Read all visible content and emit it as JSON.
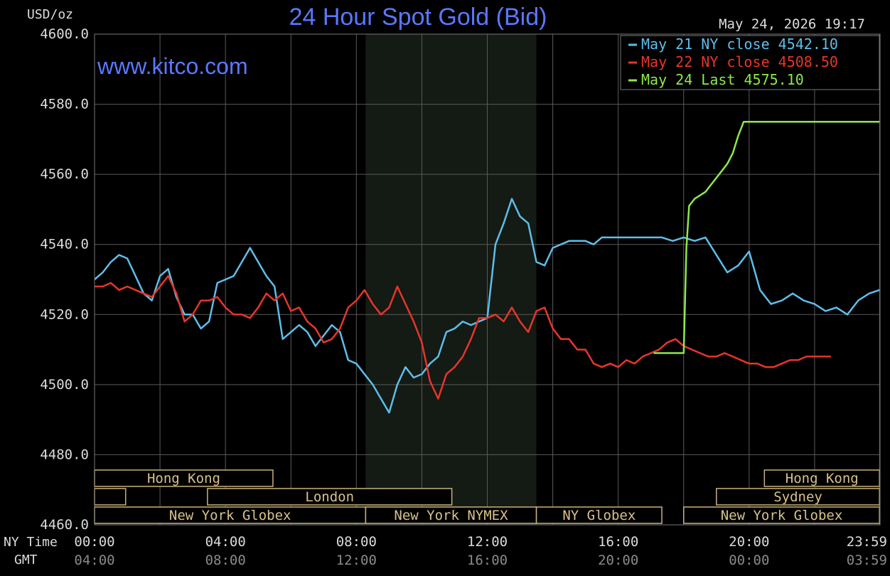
{
  "chart_data": {
    "type": "line",
    "title": "24 Hour Spot Gold (Bid)",
    "watermark": "www.kitco.com",
    "ylabel": "USD/oz",
    "timestamp": "May 24, 2026 19:17",
    "ylim": [
      4460,
      4600
    ],
    "xlim": [
      0,
      1440
    ],
    "yticks": [
      "4600.0",
      "4580.0",
      "4560.0",
      "4540.0",
      "4520.0",
      "4500.0",
      "4480.0",
      "4460.0"
    ],
    "x_row_labels": {
      "ny": "NY Time",
      "gmt": "GMT"
    },
    "x_ticks_ny": [
      "00:00",
      "04:00",
      "08:00",
      "12:00",
      "16:00",
      "20:00",
      "23:59"
    ],
    "x_ticks_gmt": [
      "04:00",
      "08:00",
      "12:00",
      "16:00",
      "20:00",
      "00:00",
      "03:59"
    ],
    "x_tick_positions_min": [
      0,
      240,
      480,
      720,
      960,
      1200,
      1439
    ],
    "legend": {
      "placement": "top-right",
      "entries": [
        {
          "label": "May 21 NY close 4542.10",
          "color": "#5ebeea"
        },
        {
          "label": "May 22 NY close 4508.50",
          "color": "#e8352a"
        },
        {
          "label": "May 24 Last 4575.10",
          "color": "#8fe848"
        }
      ]
    },
    "shaded_region_min": [
      497,
      810
    ],
    "sessions": [
      {
        "label": "Hong Kong",
        "row": 1,
        "start": 0,
        "end": 327
      },
      {
        "label": "",
        "row": 2,
        "start": 0,
        "end": 57
      },
      {
        "label": "London",
        "row": 2,
        "start": 207,
        "end": 655
      },
      {
        "label": "New York Globex",
        "row": 3,
        "start": 0,
        "end": 497
      },
      {
        "label": "New York NYMEX",
        "row": 3,
        "start": 497,
        "end": 810
      },
      {
        "label": "NY Globex",
        "row": 3,
        "start": 810,
        "end": 1040
      },
      {
        "label": "Hong Kong",
        "row": 1,
        "start": 1228,
        "end": 1439
      },
      {
        "label": "Sydney",
        "row": 2,
        "start": 1140,
        "end": 1439
      },
      {
        "label": "New York Globex",
        "row": 3,
        "start": 1080,
        "end": 1439
      }
    ],
    "series": [
      {
        "color": "#5ebeea",
        "x": [
          0,
          15,
          30,
          45,
          60,
          75,
          90,
          105,
          120,
          135,
          150,
          165,
          180,
          195,
          210,
          225,
          240,
          255,
          270,
          285,
          300,
          315,
          330,
          345,
          360,
          375,
          390,
          405,
          420,
          435,
          450,
          465,
          480,
          495,
          510,
          525,
          540,
          555,
          570,
          585,
          600,
          615,
          630,
          645,
          660,
          675,
          690,
          705,
          720,
          735,
          750,
          765,
          780,
          795,
          810,
          825,
          840,
          855,
          870,
          885,
          900,
          915,
          930,
          945,
          960,
          975,
          990,
          1005,
          1020,
          1040,
          1060,
          1080,
          1100,
          1120,
          1140,
          1160,
          1180,
          1200,
          1220,
          1240,
          1260,
          1280,
          1300,
          1320,
          1340,
          1360,
          1380,
          1400,
          1420,
          1439
        ],
        "values": [
          4530,
          4532,
          4535,
          4537,
          4536,
          4531,
          4526,
          4524,
          4531,
          4533,
          4525,
          4520,
          4520,
          4516,
          4518,
          4529,
          4530,
          4531,
          4535,
          4539,
          4535,
          4531,
          4528,
          4513,
          4515,
          4517,
          4515,
          4511,
          4514,
          4517,
          4515,
          4507,
          4506,
          4503,
          4500,
          4496,
          4492,
          4500,
          4505,
          4502,
          4503,
          4506,
          4508,
          4515,
          4516,
          4518,
          4517,
          4518,
          4519,
          4540,
          4546,
          4553,
          4548,
          4546,
          4535,
          4534,
          4539,
          4540,
          4541,
          4541,
          4541,
          4540,
          4542,
          4542,
          4542,
          4542,
          4542,
          4542,
          4542,
          4542,
          4541,
          4542,
          4541,
          4542,
          4537,
          4532,
          4534,
          4538,
          4527,
          4523,
          4524,
          4526,
          4524,
          4523,
          4521,
          4522,
          4520,
          4524,
          4526,
          4527
        ]
      },
      {
        "color": "#e8352a",
        "x": [
          0,
          15,
          30,
          45,
          60,
          75,
          90,
          105,
          120,
          135,
          150,
          165,
          180,
          195,
          210,
          225,
          240,
          255,
          270,
          285,
          300,
          315,
          330,
          345,
          360,
          375,
          390,
          405,
          420,
          435,
          450,
          465,
          480,
          495,
          510,
          525,
          540,
          555,
          570,
          585,
          600,
          615,
          630,
          645,
          660,
          675,
          690,
          705,
          720,
          735,
          750,
          765,
          780,
          795,
          810,
          825,
          840,
          855,
          870,
          885,
          900,
          915,
          930,
          945,
          960,
          975,
          990,
          1005,
          1020,
          1035,
          1050,
          1065,
          1080,
          1095,
          1110,
          1125,
          1140,
          1155,
          1170,
          1185,
          1200,
          1215,
          1230,
          1245,
          1260,
          1275,
          1290,
          1305,
          1320,
          1335,
          1350
        ],
        "values": [
          4528,
          4528,
          4529,
          4527,
          4528,
          4527,
          4526,
          4525,
          4528,
          4531,
          4526,
          4518,
          4520,
          4524,
          4524,
          4525,
          4522,
          4520,
          4520,
          4519,
          4522,
          4526,
          4524,
          4526,
          4521,
          4522,
          4518,
          4516,
          4512,
          4513,
          4516,
          4522,
          4524,
          4527,
          4523,
          4520,
          4522,
          4528,
          4523,
          4518,
          4512,
          4501,
          4496,
          4503,
          4505,
          4508,
          4513,
          4519,
          4519,
          4520,
          4518,
          4522,
          4518,
          4515,
          4521,
          4522,
          4516,
          4513,
          4513,
          4510,
          4510,
          4506,
          4505,
          4506,
          4505,
          4507,
          4506,
          4508,
          4509,
          4510,
          4512,
          4513,
          4511,
          4510,
          4509,
          4508,
          4508,
          4509,
          4508,
          4507,
          4506,
          4506,
          4505,
          4505,
          4506,
          4507,
          4507,
          4508,
          4508,
          4508,
          4508
        ]
      },
      {
        "color": "#8fe848",
        "x": [
          1025,
          1040,
          1060,
          1075,
          1080,
          1082,
          1085,
          1090,
          1100,
          1110,
          1120,
          1130,
          1140,
          1150,
          1160,
          1170,
          1180,
          1190,
          1200,
          1210,
          1220,
          1230,
          1240,
          1250,
          1260,
          1270,
          1280,
          1290,
          1300,
          1310,
          1320,
          1330,
          1340,
          1350,
          1360,
          1370,
          1380,
          1390,
          1400,
          1410,
          1420,
          1439
        ],
        "values": [
          4509,
          4509,
          4509,
          4509,
          4509,
          4521,
          4539,
          4551,
          4553,
          4554,
          4555,
          4557,
          4559,
          4561,
          4563,
          4566,
          4571,
          4575,
          4575,
          4575,
          4575,
          4575,
          4575,
          4575,
          4575,
          4575,
          4575,
          4575,
          4575,
          4575,
          4575,
          4575,
          4575,
          4575,
          4575,
          4575,
          4575,
          4575,
          4575,
          4575,
          4575,
          4575
        ]
      }
    ]
  }
}
